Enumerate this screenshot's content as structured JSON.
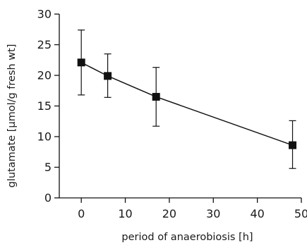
{
  "chart_data": {
    "type": "line",
    "title": "",
    "xlabel": "period of anaerobiosis [h]",
    "ylabel": "glutamate [µmol/g fresh wt]",
    "xlim": [
      -5,
      50
    ],
    "ylim": [
      0,
      30
    ],
    "x_ticks": [
      "0",
      "10",
      "20",
      "30",
      "40",
      "50"
    ],
    "y_ticks": [
      "0",
      "5",
      "10",
      "15",
      "20",
      "25",
      "30"
    ],
    "grid": false,
    "legend": "none",
    "marker": "square",
    "color": "#111111",
    "series": [
      {
        "x": [
          0,
          6,
          17,
          48
        ],
        "y": [
          22.1,
          19.9,
          16.5,
          8.6
        ],
        "error_low": [
          16.8,
          16.4,
          11.7,
          4.8
        ],
        "error_high": [
          27.4,
          23.5,
          21.3,
          12.6
        ]
      }
    ]
  }
}
